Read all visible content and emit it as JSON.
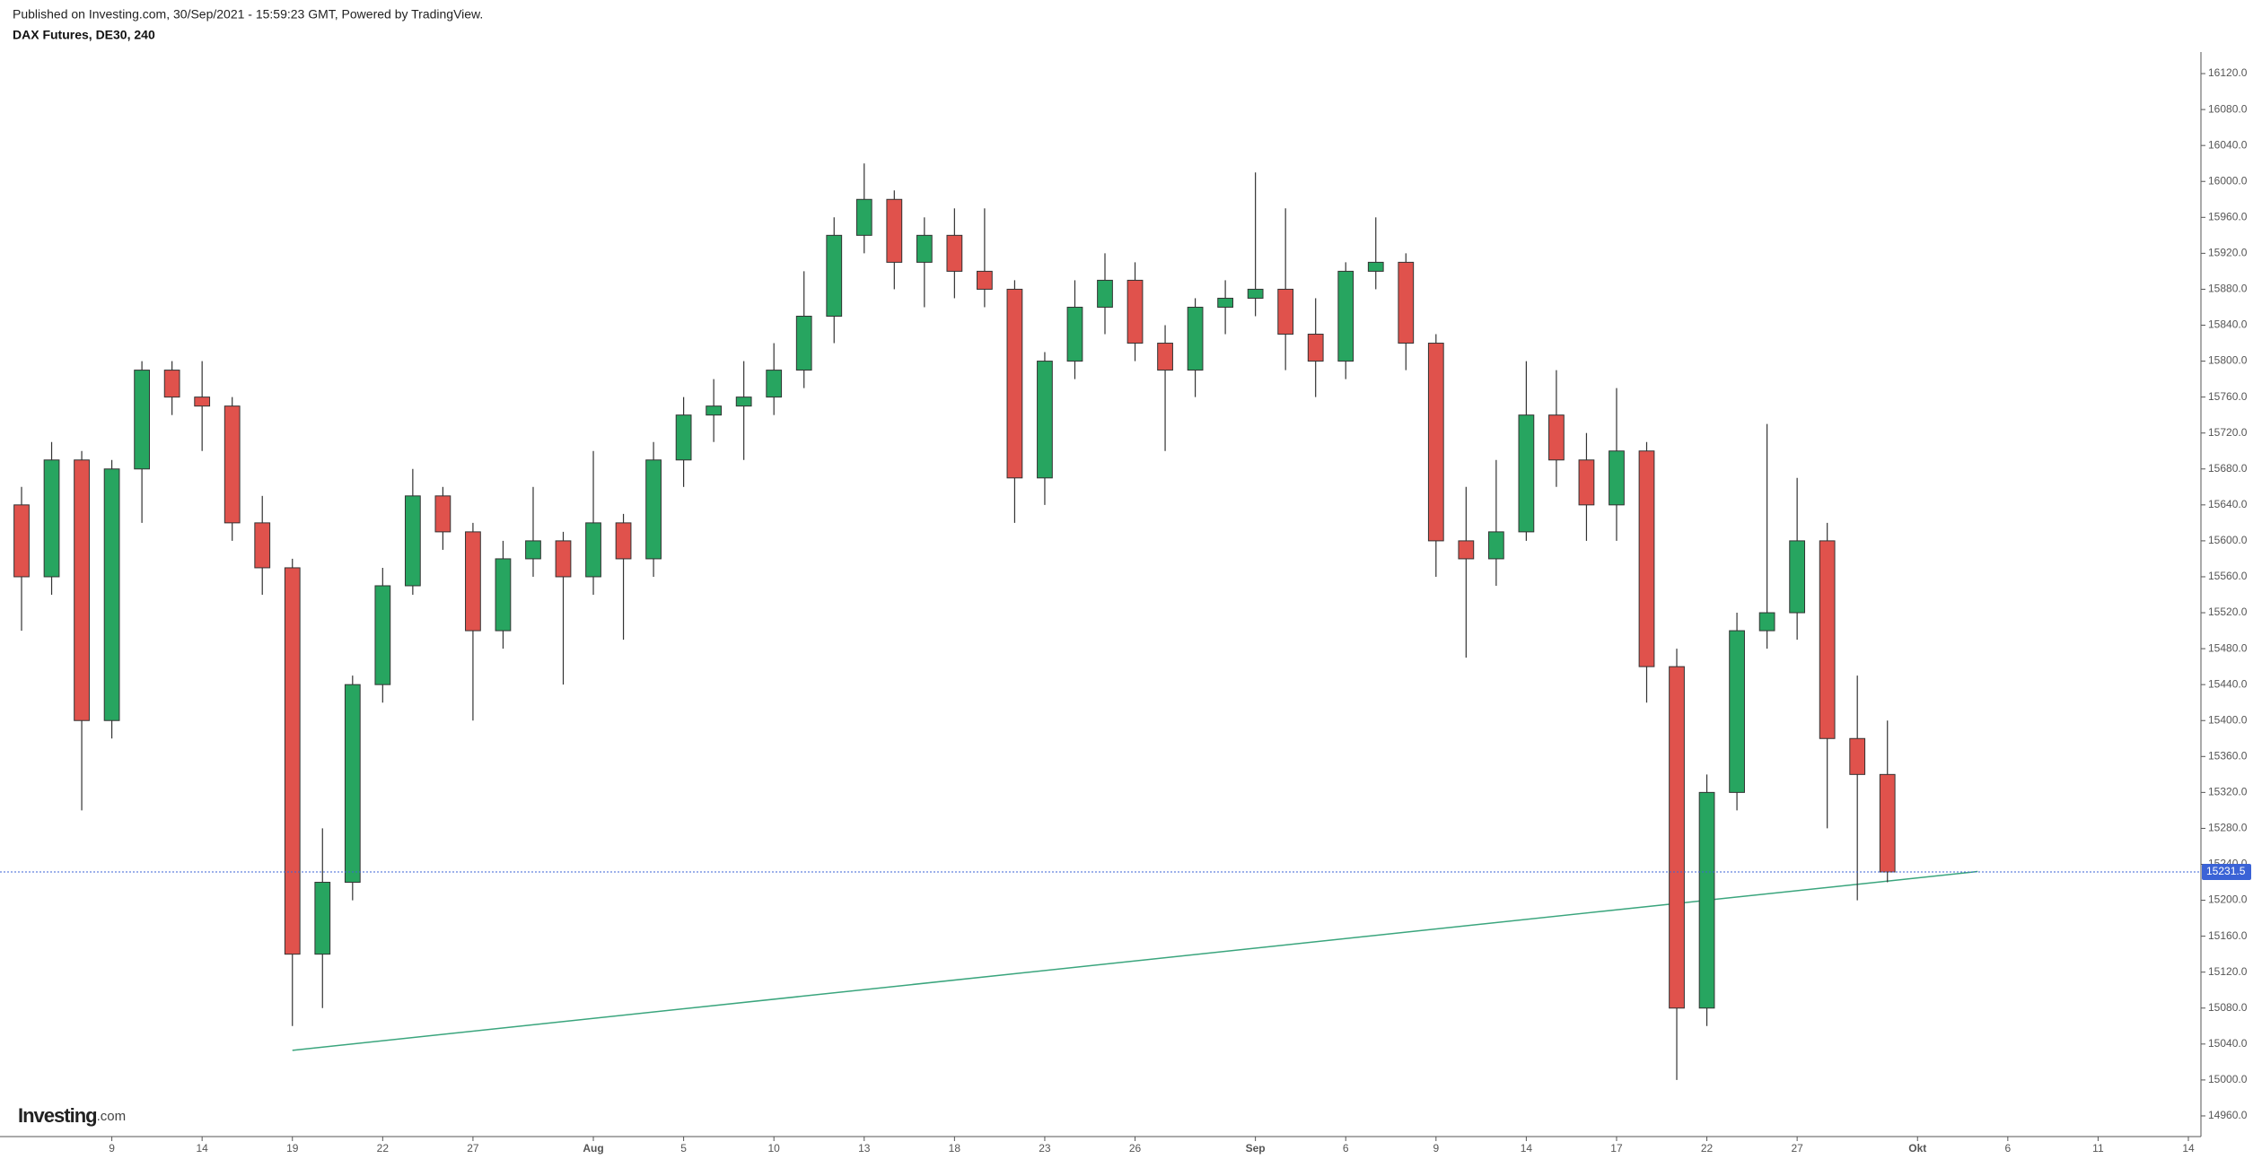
{
  "chart_data": {
    "type": "candlestick",
    "caption": "Published on Investing.com, 30/Sep/2021 - 15:59:23 GMT, Powered by TradingView.",
    "title": "DAX Futures, DE30, 240",
    "logo": [
      "Investing",
      ".com"
    ],
    "categories": [
      null,
      null,
      null,
      "9",
      null,
      null,
      "14",
      null,
      null,
      "19",
      null,
      null,
      "22",
      null,
      null,
      "27",
      null,
      null,
      null,
      "Aug",
      null,
      null,
      "5",
      null,
      null,
      "10",
      null,
      null,
      "13",
      null,
      null,
      "18",
      null,
      null,
      "23",
      null,
      null,
      "26",
      null,
      null,
      null,
      "Sep",
      null,
      null,
      "6",
      null,
      null,
      "9",
      null,
      null,
      "14",
      null,
      null,
      "17",
      null,
      null,
      "22",
      null,
      null,
      "27",
      null,
      null,
      null,
      "Okt",
      null,
      null,
      "6",
      null,
      null,
      "11",
      null,
      null,
      "14"
    ],
    "open": [
      15640,
      15560,
      15690,
      15400,
      15680,
      15790,
      15760,
      15750,
      15620,
      15570,
      15140,
      15220,
      15440,
      15550,
      15650,
      15610,
      15500,
      15580,
      15600,
      15560,
      15620,
      15580,
      15690,
      15740,
      15750,
      15760,
      15790,
      15850,
      15940,
      15980,
      15910,
      15940,
      15900,
      15880,
      15670,
      15800,
      15860,
      15890,
      15820,
      15790,
      15860,
      15870,
      15880,
      15830,
      15800,
      15900,
      15910,
      15820,
      15600,
      15580,
      15610,
      15740,
      15690,
      15640,
      15700,
      15460,
      15080,
      15320,
      15500,
      15520,
      15600,
      15380,
      15340,
      null,
      null,
      null,
      null,
      null,
      null,
      null,
      null,
      null,
      null
    ],
    "high": [
      15660,
      15710,
      15700,
      15690,
      15800,
      15800,
      15800,
      15760,
      15650,
      15580,
      15280,
      15450,
      15570,
      15680,
      15660,
      15620,
      15600,
      15660,
      15610,
      15700,
      15630,
      15710,
      15760,
      15780,
      15800,
      15820,
      15900,
      15960,
      16020,
      15990,
      15960,
      15970,
      15970,
      15890,
      15810,
      15890,
      15920,
      15910,
      15840,
      15870,
      15890,
      16010,
      15970,
      15870,
      15910,
      15960,
      15920,
      15830,
      15660,
      15690,
      15800,
      15790,
      15720,
      15770,
      15710,
      15480,
      15340,
      15520,
      15730,
      15670,
      15620,
      15450,
      15400,
      null,
      null,
      null,
      null,
      null,
      null,
      null,
      null,
      null,
      null
    ],
    "low": [
      15500,
      15540,
      15300,
      15380,
      15620,
      15740,
      15700,
      15600,
      15540,
      15060,
      15080,
      15200,
      15420,
      15540,
      15590,
      15400,
      15480,
      15560,
      15440,
      15540,
      15490,
      15560,
      15660,
      15710,
      15690,
      15740,
      15770,
      15820,
      15920,
      15880,
      15860,
      15870,
      15860,
      15620,
      15640,
      15780,
      15830,
      15800,
      15700,
      15760,
      15830,
      15850,
      15790,
      15760,
      15780,
      15880,
      15790,
      15560,
      15470,
      15550,
      15600,
      15660,
      15600,
      15600,
      15420,
      15000,
      15060,
      15300,
      15480,
      15490,
      15280,
      15200,
      15220,
      null,
      null,
      null,
      null,
      null,
      null,
      null,
      null,
      null,
      null
    ],
    "close": [
      15560,
      15690,
      15400,
      15680,
      15790,
      15760,
      15750,
      15620,
      15570,
      15140,
      15220,
      15440,
      15550,
      15650,
      15610,
      15500,
      15580,
      15600,
      15560,
      15620,
      15580,
      15690,
      15740,
      15750,
      15760,
      15790,
      15850,
      15940,
      15980,
      15910,
      15940,
      15900,
      15880,
      15670,
      15800,
      15860,
      15890,
      15820,
      15790,
      15860,
      15870,
      15880,
      15830,
      15800,
      15900,
      15910,
      15820,
      15600,
      15580,
      15610,
      15740,
      15690,
      15640,
      15700,
      15460,
      15080,
      15320,
      15500,
      15520,
      15600,
      15380,
      15340,
      15231.5,
      null,
      null,
      null,
      null,
      null,
      null,
      null,
      null,
      null,
      null
    ],
    "up_color": "#27a560",
    "down_color": "#e0524c",
    "trendline": {
      "start": 15033,
      "end": 15232,
      "color": "#3aa57d"
    },
    "last_price_color": "#3b63d6",
    "ylim": [
      14937,
      16144
    ],
    "yticks": [
      {
        "value": 14960,
        "label": "14960.0"
      },
      {
        "value": 15000,
        "label": "15000.0"
      },
      {
        "value": 15040,
        "label": "15040.0"
      },
      {
        "value": 15080,
        "label": "15080.0"
      },
      {
        "value": 15120,
        "label": "15120.0"
      },
      {
        "value": 15160,
        "label": "15160.0"
      },
      {
        "value": 15200,
        "label": "15200.0"
      },
      {
        "value": 15240,
        "label": "15240.0"
      },
      {
        "value": 15280,
        "label": "15280.0"
      },
      {
        "value": 15320,
        "label": "15320.0"
      },
      {
        "value": 15360,
        "label": "15360.0"
      },
      {
        "value": 15400,
        "label": "15400.0"
      },
      {
        "value": 15440,
        "label": "15440.0"
      },
      {
        "value": 15480,
        "label": "15480.0"
      },
      {
        "value": 15520,
        "label": "15520.0"
      },
      {
        "value": 15560,
        "label": "15560.0"
      },
      {
        "value": 15600,
        "label": "15600.0"
      },
      {
        "value": 15640,
        "label": "15640.0"
      },
      {
        "value": 15680,
        "label": "15680.0"
      },
      {
        "value": 15720,
        "label": "15720.0"
      },
      {
        "value": 15760,
        "label": "15760.0"
      },
      {
        "value": 15800,
        "label": "15800.0"
      },
      {
        "value": 15840,
        "label": "15840.0"
      },
      {
        "value": 15880,
        "label": "15880.0"
      },
      {
        "value": 15920,
        "label": "15920.0"
      },
      {
        "value": 15960,
        "label": "15960.0"
      },
      {
        "value": 16000,
        "label": "16000.0"
      },
      {
        "value": 16040,
        "label": "16040.0"
      },
      {
        "value": 16080,
        "label": "16080.0"
      },
      {
        "value": 16120,
        "label": "16120.0"
      }
    ]
  }
}
